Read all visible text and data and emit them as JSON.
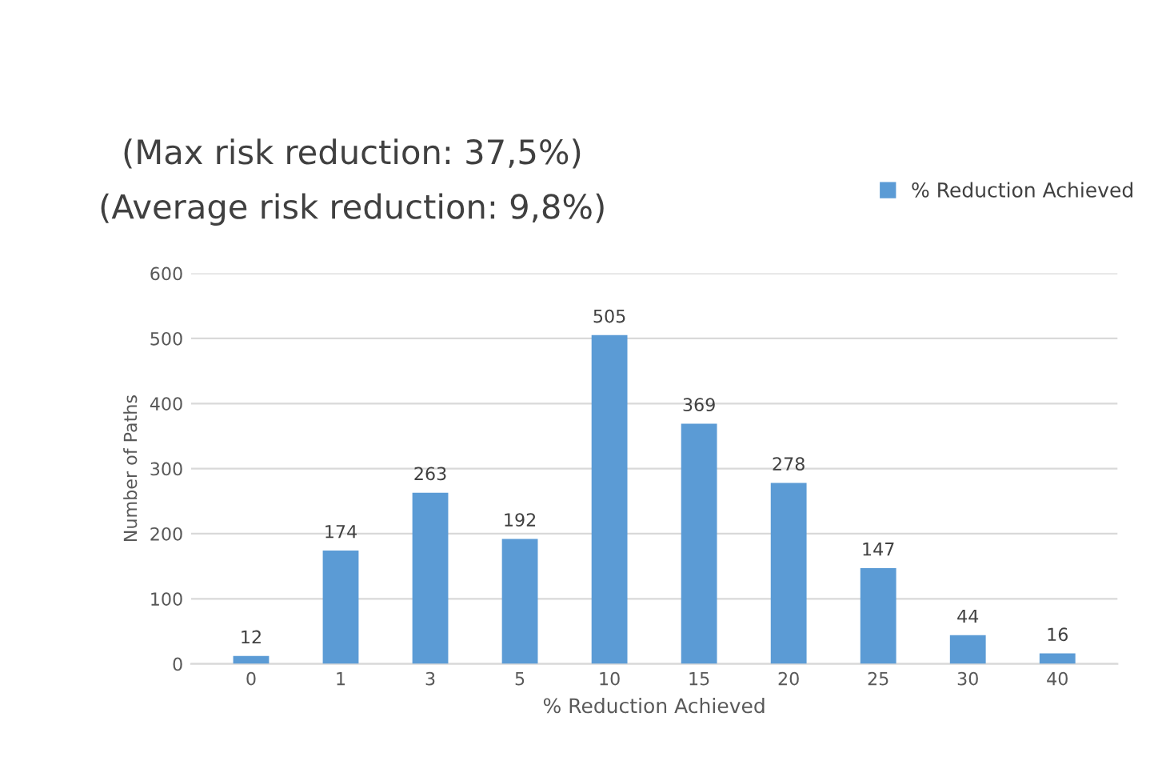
{
  "chart_data": {
    "type": "bar",
    "title": "(Max risk reduction: 37,5%)",
    "subtitle": "(Average risk reduction: 9,8%)",
    "xlabel": "% Reduction Achieved",
    "ylabel": "Number of Paths",
    "categories": [
      "0",
      "1",
      "3",
      "5",
      "10",
      "15",
      "20",
      "25",
      "30",
      "40"
    ],
    "series": [
      {
        "name": "% Reduction Achieved",
        "color": "#5b9bd5",
        "values": [
          12,
          174,
          263,
          192,
          505,
          369,
          278,
          147,
          44,
          16
        ]
      }
    ],
    "ylim": [
      0,
      600
    ],
    "yticks": [
      0,
      100,
      200,
      300,
      400,
      500,
      600
    ],
    "grid": "y",
    "legend": "top right",
    "data_labels": true
  }
}
